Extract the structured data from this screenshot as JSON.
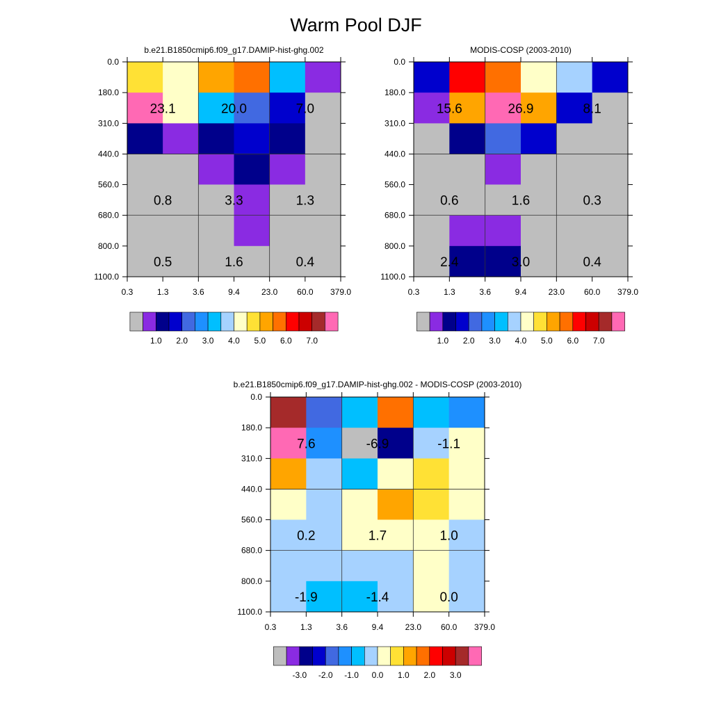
{
  "page_title": "Warm Pool DJF",
  "palettes": {
    "abs": [
      "#BEBEBE",
      "#8A2BE2",
      "#00008B",
      "#0000CD",
      "#4169E1",
      "#1E90FF",
      "#00BFFF",
      "#A6D2FF",
      "#FFFFC8",
      "#FFE135",
      "#FFA500",
      "#FF7000",
      "#FF0000",
      "#CC0000",
      "#A52A2A",
      "#FF69B4"
    ],
    "diff": [
      "#BEBEBE",
      "#8A2BE2",
      "#00008B",
      "#0000CD",
      "#4169E1",
      "#1E90FF",
      "#00BFFF",
      "#A6D2FF",
      "#FFFFC8",
      "#FFE135",
      "#FFA500",
      "#FF7000",
      "#FF0000",
      "#CC0000",
      "#A52A2A",
      "#FF69B4"
    ]
  },
  "chart_data": [
    {
      "type": "heatmap",
      "title": "b.e21.B1850cmip6.f09_g17.DAMIP-hist-ghg.002",
      "x_ticks": [
        "0.3",
        "1.3",
        "3.6",
        "9.4",
        "23.0",
        "60.0",
        "379.0"
      ],
      "y_ticks": [
        "0.0",
        "180.0",
        "310.0",
        "440.0",
        "560.0",
        "680.0",
        "800.0",
        "1100.0"
      ],
      "cells": [
        [
          9,
          8,
          10,
          11,
          6,
          1
        ],
        [
          15,
          8,
          6,
          4,
          3,
          0
        ],
        [
          2,
          1,
          2,
          3,
          2,
          0
        ],
        [
          0,
          0,
          1,
          2,
          1,
          0
        ],
        [
          0,
          0,
          0,
          1,
          0,
          0
        ],
        [
          0,
          0,
          0,
          1,
          0,
          0
        ],
        [
          0,
          0,
          0,
          0,
          0,
          0
        ]
      ],
      "annotations": [
        {
          "row": 1,
          "col": 1,
          "text": "23.1"
        },
        {
          "row": 1,
          "col": 3,
          "text": "20.0"
        },
        {
          "row": 1,
          "col": 5,
          "text": "7.0"
        },
        {
          "row": 4,
          "col": 1,
          "text": "0.8"
        },
        {
          "row": 4,
          "col": 3,
          "text": "3.3"
        },
        {
          "row": 4,
          "col": 5,
          "text": "1.3"
        },
        {
          "row": 6,
          "col": 1,
          "text": "0.5"
        },
        {
          "row": 6,
          "col": 3,
          "text": "1.6"
        },
        {
          "row": 6,
          "col": 5,
          "text": "0.4"
        }
      ],
      "colorbar_palette": "abs",
      "colorbar_labels": [
        "1.0",
        "2.0",
        "3.0",
        "4.0",
        "5.0",
        "6.0",
        "7.0"
      ]
    },
    {
      "type": "heatmap",
      "title": "MODIS-COSP (2003-2010)",
      "x_ticks": [
        "0.3",
        "1.3",
        "3.6",
        "9.4",
        "23.0",
        "60.0",
        "379.0"
      ],
      "y_ticks": [
        "0.0",
        "180.0",
        "310.0",
        "440.0",
        "560.0",
        "680.0",
        "800.0",
        "1100.0"
      ],
      "cells": [
        [
          3,
          12,
          11,
          8,
          7,
          3
        ],
        [
          1,
          10,
          15,
          10,
          3,
          0
        ],
        [
          0,
          2,
          4,
          3,
          0,
          0
        ],
        [
          0,
          0,
          1,
          0,
          0,
          0
        ],
        [
          0,
          0,
          0,
          0,
          0,
          0
        ],
        [
          0,
          1,
          1,
          0,
          0,
          0
        ],
        [
          0,
          2,
          2,
          0,
          0,
          0
        ]
      ],
      "annotations": [
        {
          "row": 1,
          "col": 1,
          "text": "15.6"
        },
        {
          "row": 1,
          "col": 3,
          "text": "26.9"
        },
        {
          "row": 1,
          "col": 5,
          "text": "8.1"
        },
        {
          "row": 4,
          "col": 1,
          "text": "0.6"
        },
        {
          "row": 4,
          "col": 3,
          "text": "1.6"
        },
        {
          "row": 4,
          "col": 5,
          "text": "0.3"
        },
        {
          "row": 6,
          "col": 1,
          "text": "2.4"
        },
        {
          "row": 6,
          "col": 3,
          "text": "3.0"
        },
        {
          "row": 6,
          "col": 5,
          "text": "0.4"
        }
      ],
      "colorbar_palette": "abs",
      "colorbar_labels": [
        "1.0",
        "2.0",
        "3.0",
        "4.0",
        "5.0",
        "6.0",
        "7.0"
      ]
    },
    {
      "type": "heatmap",
      "title": "b.e21.B1850cmip6.f09_g17.DAMIP-hist-ghg.002 - MODIS-COSP (2003-2010)",
      "x_ticks": [
        "0.3",
        "1.3",
        "3.6",
        "9.4",
        "23.0",
        "60.0",
        "379.0"
      ],
      "y_ticks": [
        "0.0",
        "180.0",
        "310.0",
        "440.0",
        "560.0",
        "680.0",
        "800.0",
        "1100.0"
      ],
      "cells": [
        [
          14,
          4,
          6,
          11,
          6,
          5
        ],
        [
          15,
          5,
          0,
          2,
          7,
          8
        ],
        [
          10,
          7,
          6,
          8,
          9,
          8
        ],
        [
          8,
          7,
          8,
          10,
          9,
          8
        ],
        [
          7,
          7,
          8,
          8,
          8,
          7
        ],
        [
          7,
          7,
          7,
          7,
          8,
          7
        ],
        [
          7,
          6,
          6,
          7,
          8,
          7
        ]
      ],
      "annotations": [
        {
          "row": 1,
          "col": 1,
          "text": "7.6"
        },
        {
          "row": 1,
          "col": 3,
          "text": "-6.9"
        },
        {
          "row": 1,
          "col": 5,
          "text": "-1.1"
        },
        {
          "row": 4,
          "col": 1,
          "text": "0.2"
        },
        {
          "row": 4,
          "col": 3,
          "text": "1.7"
        },
        {
          "row": 4,
          "col": 5,
          "text": "1.0"
        },
        {
          "row": 6,
          "col": 1,
          "text": "-1.9"
        },
        {
          "row": 6,
          "col": 3,
          "text": "-1.4"
        },
        {
          "row": 6,
          "col": 5,
          "text": "0.0"
        }
      ],
      "colorbar_palette": "diff",
      "colorbar_labels": [
        "-3.0",
        "-2.0",
        "-1.0",
        "0.0",
        "1.0",
        "2.0",
        "3.0"
      ]
    }
  ]
}
